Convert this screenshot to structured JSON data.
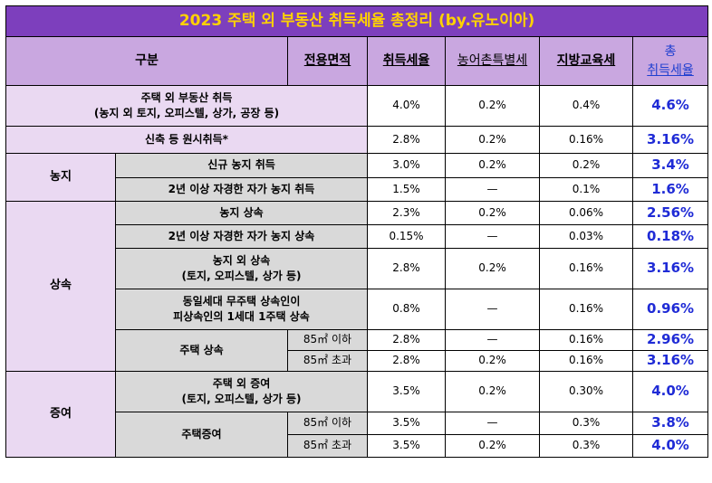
{
  "title": "2023 주택 외 부동산 취득세율 총정리 (by.유노이아)",
  "header": {
    "category": "구분",
    "area": "전용면적",
    "acq": "취득세율",
    "rural": "농어촌특별세",
    "edu": "지방교육세",
    "total_line1": "총",
    "total_line2": "취득세율"
  },
  "rows": {
    "nonhouse": {
      "label1": "주택 외 부동산 취득",
      "label2": "(농지 외 토지, 오피스텔, 상가, 공장 등)",
      "acq": "4.0%",
      "rural": "0.2%",
      "edu": "0.4%",
      "total": "4.6%"
    },
    "new": {
      "label": "신축 등 원시취득*",
      "acq": "2.8%",
      "rural": "0.2%",
      "edu": "0.16%",
      "total": "3.16%"
    },
    "farm": {
      "category": "농지",
      "new": {
        "label": "신규 농지 취득",
        "acq": "3.0%",
        "rural": "0.2%",
        "edu": "0.2%",
        "total": "3.4%"
      },
      "self": {
        "label": "2년 이상 자경한 자가 농지 취득",
        "acq": "1.5%",
        "rural": "—",
        "edu": "0.1%",
        "total": "1.6%"
      }
    },
    "inherit": {
      "category": "상속",
      "farm": {
        "label": "농지 상속",
        "acq": "2.3%",
        "rural": "0.2%",
        "edu": "0.06%",
        "total": "2.56%"
      },
      "self": {
        "label": "2년 이상 자경한 자가 농지 상속",
        "acq": "0.15%",
        "rural": "—",
        "edu": "0.03%",
        "total": "0.18%"
      },
      "other": {
        "label1": "농지 외 상속",
        "label2": "(토지, 오피스텔, 상가 등)",
        "acq": "2.8%",
        "rural": "0.2%",
        "edu": "0.16%",
        "total": "3.16%"
      },
      "nohouse": {
        "label1": "동일세대 무주택 상속인이",
        "label2": "피상속인의 1세대 1주택 상속",
        "acq": "0.8%",
        "rural": "—",
        "edu": "0.16%",
        "total": "0.96%"
      },
      "house": {
        "label": "주택 상속",
        "small": {
          "area": "85㎡ 이하",
          "acq": "2.8%",
          "rural": "—",
          "edu": "0.16%",
          "total": "2.96%"
        },
        "large": {
          "area": "85㎡ 초과",
          "acq": "2.8%",
          "rural": "0.2%",
          "edu": "0.16%",
          "total": "3.16%"
        }
      }
    },
    "gift": {
      "category": "증여",
      "other": {
        "label1": "주택 외 증여",
        "label2": "(토지, 오피스텔, 상가 등)",
        "acq": "3.5%",
        "rural": "0.2%",
        "edu": "0.30%",
        "total": "4.0%"
      },
      "house": {
        "label": "주택증여",
        "small": {
          "area": "85㎡ 이하",
          "acq": "3.5%",
          "rural": "—",
          "edu": "0.3%",
          "total": "3.8%"
        },
        "large": {
          "area": "85㎡ 초과",
          "acq": "3.5%",
          "rural": "0.2%",
          "edu": "0.3%",
          "total": "4.0%"
        }
      }
    }
  }
}
